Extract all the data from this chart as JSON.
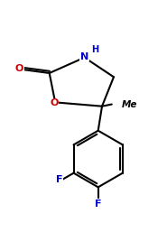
{
  "bg_color": "#ffffff",
  "line_color": "#000000",
  "atom_colors": {
    "O": "#cc0000",
    "N": "#0000cc",
    "F": "#0000cc",
    "C": "#000000",
    "H": "#0000cc"
  },
  "figsize": [
    1.85,
    2.57
  ],
  "dpi": 100,
  "line_width": 1.5,
  "font_size_atoms": 8,
  "font_size_me": 7.5
}
